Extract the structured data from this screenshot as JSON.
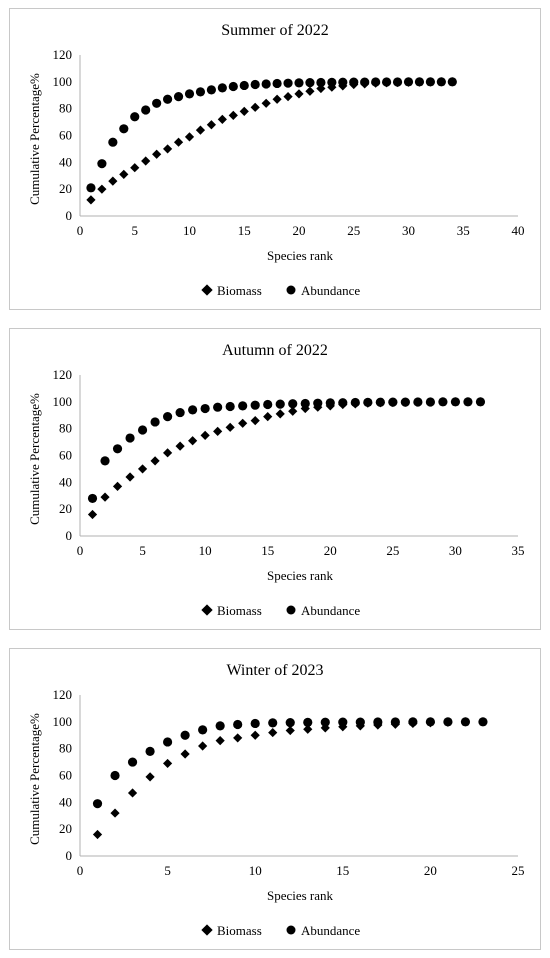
{
  "chart_data": [
    {
      "type": "scatter",
      "title": "Summer of 2022",
      "xlabel": "Species rank",
      "ylabel": "Cumulative Percentage%",
      "xlim": [
        0,
        40
      ],
      "ylim": [
        0,
        120
      ],
      "xticks": [
        "0",
        "5",
        "10",
        "15",
        "20",
        "25",
        "30",
        "35",
        "40"
      ],
      "yticks": [
        "0",
        "20",
        "40",
        "60",
        "80",
        "100",
        "120"
      ],
      "grid": false,
      "legend": "bottom",
      "series": [
        {
          "name": "Biomass",
          "marker": "diamond",
          "x": [
            1,
            2,
            3,
            4,
            5,
            6,
            7,
            8,
            9,
            10,
            11,
            12,
            13,
            14,
            15,
            16,
            17,
            18,
            19,
            20,
            21,
            22,
            23,
            24,
            25,
            26,
            27,
            28,
            29,
            30,
            31,
            32,
            33,
            34
          ],
          "y": [
            12,
            20,
            26,
            31,
            36,
            41,
            46,
            50,
            55,
            59,
            64,
            68,
            72,
            75,
            78,
            81,
            84,
            87,
            89,
            91,
            93,
            95,
            96,
            97,
            98,
            98.5,
            99,
            99.3,
            99.5,
            99.7,
            99.8,
            99.9,
            100,
            100
          ]
        },
        {
          "name": "Abundance",
          "marker": "circle",
          "x": [
            1,
            2,
            3,
            4,
            5,
            6,
            7,
            8,
            9,
            10,
            11,
            12,
            13,
            14,
            15,
            16,
            17,
            18,
            19,
            20,
            21,
            22,
            23,
            24,
            25,
            26,
            27,
            28,
            29,
            30,
            31,
            32,
            33,
            34
          ],
          "y": [
            21,
            39,
            55,
            65,
            74,
            79,
            84,
            87,
            89,
            91,
            92.5,
            94,
            95.5,
            96.5,
            97.3,
            98,
            98.4,
            98.8,
            99,
            99.2,
            99.4,
            99.5,
            99.6,
            99.7,
            99.8,
            99.8,
            99.9,
            99.9,
            99.9,
            100,
            100,
            100,
            100,
            100
          ]
        }
      ]
    },
    {
      "type": "scatter",
      "title": "Autumn of 2022",
      "xlabel": "Species rank",
      "ylabel": "Cumulative Percentage%",
      "xlim": [
        0,
        35
      ],
      "ylim": [
        0,
        120
      ],
      "xticks": [
        "0",
        "5",
        "10",
        "15",
        "20",
        "25",
        "30",
        "35"
      ],
      "yticks": [
        "0",
        "20",
        "40",
        "60",
        "80",
        "100",
        "120"
      ],
      "grid": false,
      "legend": "bottom",
      "series": [
        {
          "name": "Biomass",
          "marker": "diamond",
          "x": [
            1,
            2,
            3,
            4,
            5,
            6,
            7,
            8,
            9,
            10,
            11,
            12,
            13,
            14,
            15,
            16,
            17,
            18,
            19,
            20,
            21,
            22,
            23,
            24,
            25,
            26,
            27,
            28,
            29,
            30,
            31,
            32
          ],
          "y": [
            16,
            29,
            37,
            44,
            50,
            56,
            62,
            67,
            71,
            75,
            78,
            81,
            84,
            86,
            89,
            91,
            93,
            95,
            96,
            97,
            98,
            98.5,
            99,
            99.3,
            99.5,
            99.7,
            99.8,
            99.9,
            100,
            100,
            100,
            100
          ]
        },
        {
          "name": "Abundance",
          "marker": "circle",
          "x": [
            1,
            2,
            3,
            4,
            5,
            6,
            7,
            8,
            9,
            10,
            11,
            12,
            13,
            14,
            15,
            16,
            17,
            18,
            19,
            20,
            21,
            22,
            23,
            24,
            25,
            26,
            27,
            28,
            29,
            30,
            31,
            32
          ],
          "y": [
            28,
            56,
            65,
            73,
            79,
            85,
            89,
            92,
            94,
            95,
            96,
            96.5,
            97,
            97.5,
            98,
            98.3,
            98.6,
            98.8,
            99,
            99.2,
            99.3,
            99.5,
            99.6,
            99.7,
            99.8,
            99.8,
            99.9,
            99.9,
            100,
            100,
            100,
            100
          ]
        }
      ]
    },
    {
      "type": "scatter",
      "title": "Winter of 2023",
      "xlabel": "Species rank",
      "ylabel": "Cumulative Percentage%",
      "xlim": [
        0,
        25
      ],
      "ylim": [
        0,
        120
      ],
      "xticks": [
        "0",
        "5",
        "10",
        "15",
        "20",
        "25"
      ],
      "yticks": [
        "0",
        "20",
        "40",
        "60",
        "80",
        "100",
        "120"
      ],
      "grid": false,
      "legend": "bottom",
      "series": [
        {
          "name": "Biomass",
          "marker": "diamond",
          "x": [
            1,
            2,
            3,
            4,
            5,
            6,
            7,
            8,
            9,
            10,
            11,
            12,
            13,
            14,
            15,
            16,
            17,
            18,
            19,
            20,
            21,
            22,
            23
          ],
          "y": [
            16,
            32,
            47,
            59,
            69,
            76,
            82,
            86,
            88,
            90,
            92,
            93.5,
            94.5,
            95.5,
            96.3,
            97,
            97.6,
            98.2,
            98.8,
            99.3,
            99.7,
            100,
            100
          ]
        },
        {
          "name": "Abundance",
          "marker": "circle",
          "x": [
            1,
            2,
            3,
            4,
            5,
            6,
            7,
            8,
            9,
            10,
            11,
            12,
            13,
            14,
            15,
            16,
            17,
            18,
            19,
            20,
            21,
            22,
            23
          ],
          "y": [
            39,
            60,
            70,
            78,
            85,
            90,
            94,
            97,
            98,
            98.8,
            99.2,
            99.4,
            99.6,
            99.7,
            99.8,
            99.8,
            99.9,
            99.9,
            100,
            100,
            100,
            100,
            100
          ]
        }
      ]
    }
  ]
}
